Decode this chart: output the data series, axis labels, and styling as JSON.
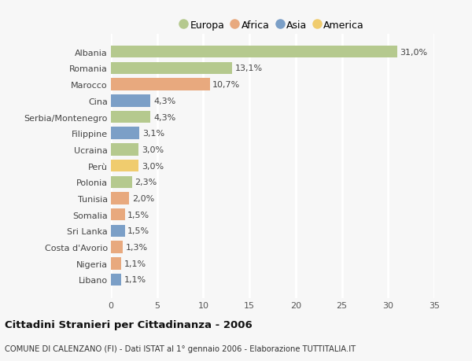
{
  "countries": [
    "Albania",
    "Romania",
    "Marocco",
    "Cina",
    "Serbia/Montenegro",
    "Filippine",
    "Ucraina",
    "Perù",
    "Polonia",
    "Tunisia",
    "Somalia",
    "Sri Lanka",
    "Costa d'Avorio",
    "Nigeria",
    "Libano"
  ],
  "values": [
    31.0,
    13.1,
    10.7,
    4.3,
    4.3,
    3.1,
    3.0,
    3.0,
    2.3,
    2.0,
    1.5,
    1.5,
    1.3,
    1.1,
    1.1
  ],
  "labels": [
    "31,0%",
    "13,1%",
    "10,7%",
    "4,3%",
    "4,3%",
    "3,1%",
    "3,0%",
    "3,0%",
    "2,3%",
    "2,0%",
    "1,5%",
    "1,5%",
    "1,3%",
    "1,1%",
    "1,1%"
  ],
  "continents": [
    "Europa",
    "Europa",
    "Africa",
    "Asia",
    "Europa",
    "Asia",
    "Europa",
    "America",
    "Europa",
    "Africa",
    "Africa",
    "Asia",
    "Africa",
    "Africa",
    "Asia"
  ],
  "colors": {
    "Europa": "#b5c98e",
    "Africa": "#e8a97e",
    "Asia": "#7b9fc7",
    "America": "#f0cc6e"
  },
  "legend_order": [
    "Europa",
    "Africa",
    "Asia",
    "America"
  ],
  "title": "Cittadini Stranieri per Cittadinanza - 2006",
  "subtitle": "COMUNE DI CALENZANO (FI) - Dati ISTAT al 1° gennaio 2006 - Elaborazione TUTTITALIA.IT",
  "xlim": [
    0,
    35
  ],
  "xticks": [
    0,
    5,
    10,
    15,
    20,
    25,
    30,
    35
  ],
  "background_color": "#f7f7f7",
  "grid_color": "#ffffff",
  "bar_height": 0.75,
  "label_fontsize": 8.0,
  "tick_fontsize": 8.0
}
